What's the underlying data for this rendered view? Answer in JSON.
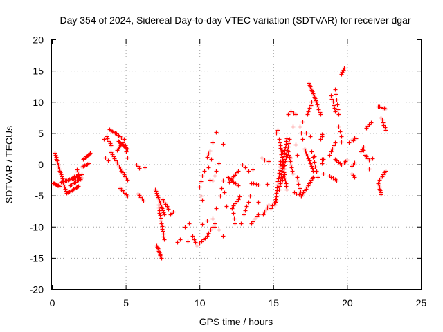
{
  "chart_data": {
    "type": "scatter",
    "title": "Day 354 of 2024, Sidereal Day-to-day VTEC variation (SDTVAR) for receiver dgar",
    "xlabel": "GPS time / hours",
    "ylabel": "SDTVAR / TECUs",
    "xlim": [
      0,
      25
    ],
    "ylim": [
      -20,
      20
    ],
    "xticks": [
      "0",
      "5",
      "10",
      "15",
      "20",
      "25"
    ],
    "yticks": [
      "-20",
      "-15",
      "-10",
      "-5",
      "0",
      "5",
      "10",
      "15",
      "20"
    ],
    "grid": true,
    "marker": "+",
    "color": "#ff0000",
    "tracks": [
      {
        "from": [
          0.1,
          -3.0
        ],
        "to": [
          0.5,
          -3.5
        ],
        "n": 8
      },
      {
        "from": [
          0.2,
          1.8
        ],
        "to": [
          0.5,
          -1.0
        ],
        "n": 10
      },
      {
        "from": [
          0.5,
          -1.0
        ],
        "to": [
          1.0,
          -4.6
        ],
        "n": 12
      },
      {
        "from": [
          1.0,
          -4.6
        ],
        "to": [
          1.8,
          -3.5
        ],
        "n": 10
      },
      {
        "from": [
          0.6,
          -2.8
        ],
        "to": [
          1.8,
          -2.0
        ],
        "n": 14
      },
      {
        "from": [
          1.2,
          -3.4
        ],
        "to": [
          2.0,
          -2.2
        ],
        "n": 9
      },
      {
        "from": [
          1.4,
          -2.0
        ],
        "to": [
          2.0,
          -1.6
        ],
        "n": 6
      },
      {
        "from": [
          2.0,
          -0.4
        ],
        "to": [
          2.5,
          0.2
        ],
        "n": 6
      },
      {
        "from": [
          2.1,
          0.8
        ],
        "to": [
          2.6,
          1.8
        ],
        "n": 8
      },
      {
        "from": [
          1.7,
          -0.8
        ],
        "to": [
          1.9,
          -2.4
        ],
        "n": 5
      },
      {
        "from": [
          3.7,
          4.5
        ],
        "to": [
          4.0,
          3.0
        ],
        "n": 5
      },
      {
        "from": [
          3.9,
          5.6
        ],
        "to": [
          4.7,
          4.3
        ],
        "n": 10
      },
      {
        "from": [
          4.0,
          1.9
        ],
        "to": [
          4.7,
          -1.0
        ],
        "n": 10
      },
      {
        "from": [
          4.5,
          3.7
        ],
        "to": [
          5.1,
          2.5
        ],
        "n": 10
      },
      {
        "from": [
          4.7,
          -1.0
        ],
        "to": [
          5.1,
          -2.5
        ],
        "n": 6
      },
      {
        "from": [
          4.4,
          2.3
        ],
        "to": [
          4.8,
          3.5
        ],
        "n": 6
      },
      {
        "from": [
          4.6,
          -3.8
        ],
        "to": [
          5.1,
          -5.0
        ],
        "n": 7
      },
      {
        "from": [
          4.9,
          4.0
        ],
        "to": [
          5.1,
          1.0
        ],
        "n": 4
      },
      {
        "from": [
          5.7,
          0.0
        ],
        "to": [
          5.9,
          -0.6
        ],
        "n": 3
      },
      {
        "from": [
          5.8,
          -4.7
        ],
        "to": [
          6.2,
          -5.8
        ],
        "n": 5
      },
      {
        "from": [
          7.0,
          -4.0
        ],
        "to": [
          7.6,
          -8.0
        ],
        "n": 14
      },
      {
        "from": [
          7.2,
          -6.5
        ],
        "to": [
          7.6,
          -12.0
        ],
        "n": 14
      },
      {
        "from": [
          7.1,
          -13.0
        ],
        "to": [
          7.4,
          -15.0
        ],
        "n": 10
      },
      {
        "from": [
          7.5,
          -5.6
        ],
        "to": [
          7.9,
          -7.2
        ],
        "n": 7
      },
      {
        "from": [
          8.0,
          -8.0
        ],
        "to": [
          8.2,
          -7.6
        ],
        "n": 3
      },
      {
        "from": [
          9.5,
          -11.5
        ],
        "to": [
          9.8,
          -13.0
        ],
        "n": 4
      },
      {
        "from": [
          10.0,
          -12.6
        ],
        "to": [
          10.5,
          -11.5
        ],
        "n": 5
      },
      {
        "from": [
          10.6,
          -11.0
        ],
        "to": [
          11.0,
          -9.5
        ],
        "n": 4
      },
      {
        "from": [
          10.9,
          -2.6
        ],
        "to": [
          11.1,
          -1.0
        ],
        "n": 3
      },
      {
        "from": [
          10.0,
          -3.6
        ],
        "to": [
          10.3,
          -1.0
        ],
        "n": 4
      },
      {
        "from": [
          10.5,
          1.2
        ],
        "to": [
          10.7,
          2.2
        ],
        "n": 3
      },
      {
        "from": [
          11.4,
          -5.0
        ],
        "to": [
          11.6,
          -2.6
        ],
        "n": 3
      },
      {
        "from": [
          12.0,
          -2.8
        ],
        "to": [
          12.6,
          -1.0
        ],
        "n": 9
      },
      {
        "from": [
          11.9,
          -2.0
        ],
        "to": [
          12.6,
          -3.4
        ],
        "n": 10
      },
      {
        "from": [
          12.2,
          -7.0
        ],
        "to": [
          12.7,
          -5.2
        ],
        "n": 6
      },
      {
        "from": [
          12.2,
          -7.0
        ],
        "to": [
          12.4,
          -9.5
        ],
        "n": 4
      },
      {
        "from": [
          13.0,
          -8.0
        ],
        "to": [
          13.3,
          -6.0
        ],
        "n": 4
      },
      {
        "from": [
          13.5,
          -9.5
        ],
        "to": [
          14.0,
          -8.0
        ],
        "n": 5
      },
      {
        "from": [
          13.5,
          -3.0
        ],
        "to": [
          14.0,
          -3.3
        ],
        "n": 4
      },
      {
        "from": [
          12.9,
          0.0
        ],
        "to": [
          13.3,
          -1.0
        ],
        "n": 3
      },
      {
        "from": [
          14.3,
          -8.0
        ],
        "to": [
          14.7,
          -6.5
        ],
        "n": 5
      },
      {
        "from": [
          14.8,
          -7.0
        ],
        "to": [
          15.2,
          -5.8
        ],
        "n": 4
      },
      {
        "from": [
          15.1,
          -6.5
        ],
        "to": [
          15.5,
          0.5
        ],
        "n": 16
      },
      {
        "from": [
          15.4,
          -4.0
        ],
        "to": [
          15.9,
          4.2
        ],
        "n": 18
      },
      {
        "from": [
          15.4,
          4.0
        ],
        "to": [
          15.9,
          -4.0
        ],
        "n": 18
      },
      {
        "from": [
          15.6,
          -2.5
        ],
        "to": [
          16.1,
          4.0
        ],
        "n": 12
      },
      {
        "from": [
          16.0,
          2.0
        ],
        "to": [
          16.3,
          -1.5
        ],
        "n": 8
      },
      {
        "from": [
          15.6,
          2.0
        ],
        "to": [
          16.2,
          1.0
        ],
        "n": 6
      },
      {
        "from": [
          16.2,
          8.5
        ],
        "to": [
          16.5,
          8.0
        ],
        "n": 3
      },
      {
        "from": [
          16.6,
          -2.0
        ],
        "to": [
          16.9,
          -5.0
        ],
        "n": 6
      },
      {
        "from": [
          16.4,
          -4.5
        ],
        "to": [
          16.9,
          -5.0
        ],
        "n": 4
      },
      {
        "from": [
          17.1,
          2.5
        ],
        "to": [
          17.7,
          -1.0
        ],
        "n": 10
      },
      {
        "from": [
          16.9,
          -5.0
        ],
        "to": [
          17.7,
          -2.0
        ],
        "n": 12
      },
      {
        "from": [
          17.3,
          8.0
        ],
        "to": [
          17.6,
          10.0
        ],
        "n": 5
      },
      {
        "from": [
          16.8,
          6.0
        ],
        "to": [
          17.0,
          4.0
        ],
        "n": 3
      },
      {
        "from": [
          17.4,
          13.0
        ],
        "to": [
          17.9,
          10.0
        ],
        "n": 12
      },
      {
        "from": [
          17.9,
          10.0
        ],
        "to": [
          18.2,
          8.0
        ],
        "n": 6
      },
      {
        "from": [
          17.6,
          2.0
        ],
        "to": [
          18.0,
          -2.0
        ],
        "n": 6
      },
      {
        "from": [
          18.8,
          1.5
        ],
        "to": [
          19.2,
          3.5
        ],
        "n": 5
      },
      {
        "from": [
          18.9,
          11.0
        ],
        "to": [
          19.2,
          8.5
        ],
        "n": 6
      },
      {
        "from": [
          19.2,
          12.0
        ],
        "to": [
          19.4,
          8.0
        ],
        "n": 6
      },
      {
        "from": [
          19.2,
          0.8
        ],
        "to": [
          19.6,
          0.0
        ],
        "n": 5
      },
      {
        "from": [
          18.9,
          -2.0
        ],
        "to": [
          19.3,
          -2.6
        ],
        "n": 4
      },
      {
        "from": [
          19.4,
          6.0
        ],
        "to": [
          19.6,
          4.5
        ],
        "n": 3
      },
      {
        "from": [
          19.6,
          14.5
        ],
        "to": [
          19.8,
          15.5
        ],
        "n": 4
      },
      {
        "from": [
          19.8,
          0.3
        ],
        "to": [
          20.0,
          0.7
        ],
        "n": 3
      },
      {
        "from": [
          20.3,
          -0.3
        ],
        "to": [
          20.5,
          0.3
        ],
        "n": 3
      },
      {
        "from": [
          20.3,
          -1.5
        ],
        "to": [
          20.5,
          -2.0
        ],
        "n": 3
      },
      {
        "from": [
          20.9,
          2.0
        ],
        "to": [
          21.1,
          2.8
        ],
        "n": 3
      },
      {
        "from": [
          21.2,
          1.5
        ],
        "to": [
          21.5,
          0.7
        ],
        "n": 4
      },
      {
        "from": [
          21.3,
          5.8
        ],
        "to": [
          21.6,
          6.7
        ],
        "n": 4
      },
      {
        "from": [
          22.1,
          -3.0
        ],
        "to": [
          22.3,
          -4.8
        ],
        "n": 7
      },
      {
        "from": [
          22.2,
          -2.5
        ],
        "to": [
          22.6,
          -1.0
        ],
        "n": 6
      },
      {
        "from": [
          22.1,
          9.3
        ],
        "to": [
          22.6,
          8.9
        ],
        "n": 6
      },
      {
        "from": [
          22.3,
          7.5
        ],
        "to": [
          22.6,
          5.5
        ],
        "n": 6
      },
      {
        "from": [
          18.2,
          4.0
        ],
        "to": [
          18.3,
          4.8
        ],
        "n": 2
      },
      {
        "from": [
          18.3,
          0.2
        ],
        "to": [
          18.3,
          0.8
        ],
        "n": 2
      },
      {
        "from": [
          20.1,
          3.5
        ],
        "to": [
          20.4,
          3.8
        ],
        "n": 2
      },
      {
        "from": [
          20.6,
          4.1
        ],
        "to": [
          20.6,
          4.1
        ],
        "n": 1
      }
    ],
    "points": [
      [
        3.6,
        1.0
      ],
      [
        3.8,
        0.6
      ],
      [
        3.5,
        4.0
      ],
      [
        6.3,
        -0.5
      ],
      [
        8.5,
        -12.5
      ],
      [
        8.7,
        -12.0
      ],
      [
        9.2,
        -12.3
      ],
      [
        9.0,
        -10.0
      ],
      [
        9.3,
        -9.5
      ],
      [
        10.2,
        -9.6
      ],
      [
        10.5,
        -9.0
      ],
      [
        10.9,
        -8.7
      ],
      [
        11.3,
        -10.5
      ],
      [
        11.0,
        -10.0
      ],
      [
        11.1,
        -7.0
      ],
      [
        11.6,
        -11.5
      ],
      [
        10.1,
        -5.0
      ],
      [
        10.2,
        -5.7
      ],
      [
        10.7,
        -2.5
      ],
      [
        10.8,
        0.8
      ],
      [
        10.6,
        -0.5
      ],
      [
        10.9,
        3.5
      ],
      [
        11.1,
        5.2
      ],
      [
        11.6,
        3.3
      ],
      [
        11.3,
        0.2
      ],
      [
        11.7,
        -4.5
      ],
      [
        11.8,
        -6.7
      ],
      [
        12.8,
        -9.5
      ],
      [
        13.4,
        -5.0
      ],
      [
        13.6,
        -0.8
      ],
      [
        14.2,
        1.0
      ],
      [
        14.4,
        0.7
      ],
      [
        14.6,
        -3.2
      ],
      [
        14.0,
        -6.0
      ],
      [
        14.7,
        0.5
      ],
      [
        15.3,
        5.5
      ],
      [
        15.2,
        5.0
      ],
      [
        16.0,
        8.0
      ],
      [
        16.3,
        6.0
      ],
      [
        16.5,
        3.2
      ],
      [
        16.6,
        1.5
      ],
      [
        17.2,
        5.0
      ],
      [
        17.0,
        6.8
      ],
      [
        17.5,
        4.5
      ],
      [
        18.3,
        4.5
      ],
      [
        18.4,
        0.8
      ],
      [
        18.8,
        -1.8
      ],
      [
        19.6,
        3.6
      ],
      [
        20.3,
        3.9
      ],
      [
        20.5,
        4.3
      ],
      [
        21.1,
        2.3
      ],
      [
        21.5,
        -0.7
      ],
      [
        21.7,
        0.9
      ],
      [
        18.4,
        -1.5
      ],
      [
        17.9,
        -1.0
      ],
      [
        17.8,
        1.3
      ]
    ]
  }
}
